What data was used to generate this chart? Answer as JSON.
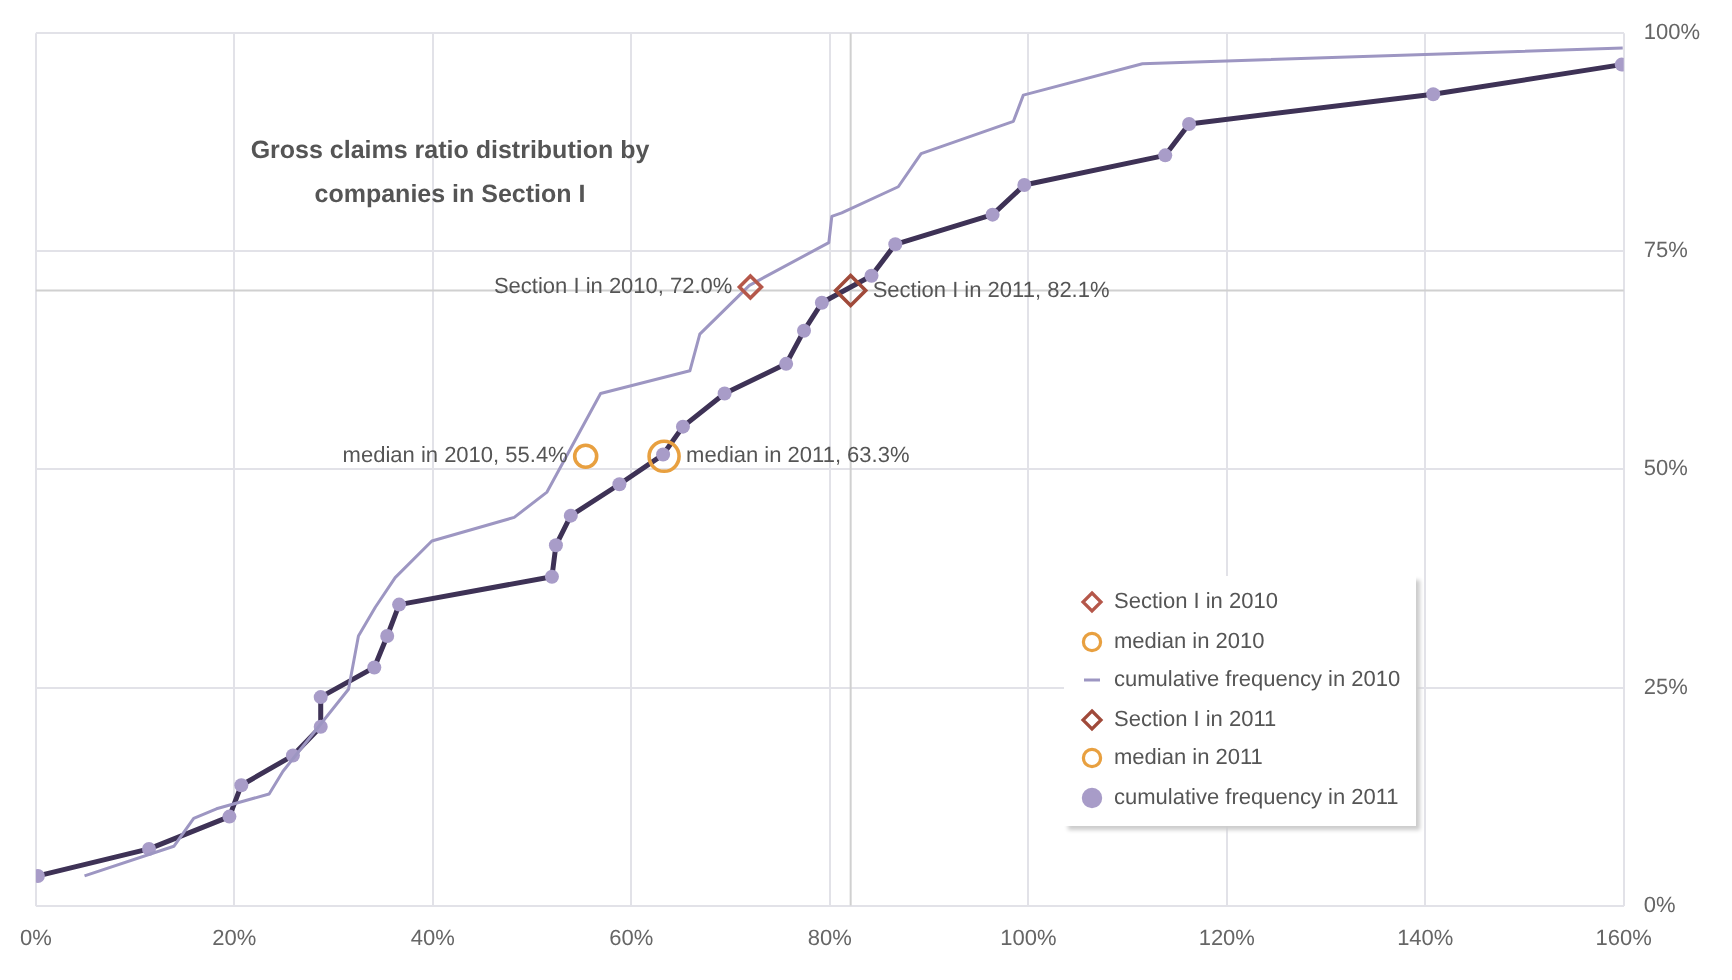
{
  "chart_data": {
    "type": "scatter",
    "title": "Gross claims ratio distribution by companies in Section I",
    "xlim": [
      0,
      160
    ],
    "xticks": [
      {
        "value": 0,
        "label": "0%"
      },
      {
        "value": 20,
        "label": "20%"
      },
      {
        "value": 40,
        "label": "40%"
      },
      {
        "value": 60,
        "label": "60%"
      },
      {
        "value": 80,
        "label": "80%"
      },
      {
        "value": 100,
        "label": "100%"
      },
      {
        "value": 120,
        "label": "120%"
      },
      {
        "value": 140,
        "label": "140%"
      },
      {
        "value": 160,
        "label": "160%"
      }
    ],
    "ylim": [
      0,
      100
    ],
    "yticks": [
      {
        "value": 0,
        "label": "0%"
      },
      {
        "value": 25,
        "label": "25%"
      },
      {
        "value": 50,
        "label": "50%"
      },
      {
        "value": 75,
        "label": "75%"
      },
      {
        "value": 100,
        "label": "100%"
      }
    ],
    "grid": true,
    "legend": "bottom right",
    "series": [
      {
        "name": "Section I in 2010",
        "marker": "diamond",
        "color": "#b5574a",
        "x": [
          72.0
        ],
        "values": [
          70.9
        ]
      },
      {
        "name": "median in 2010",
        "marker": "circle",
        "color": "#e8a040",
        "x": [
          55.4
        ],
        "values": [
          51.5
        ]
      },
      {
        "name": "cumulative frequency in 2010",
        "type": "line",
        "marker": "none",
        "line_style": "solid",
        "color": "#9d96c2",
        "x": [
          4.9,
          13.9,
          15.9,
          18.2,
          23.5,
          24.9,
          31.5,
          32.5,
          34.2,
          36.2,
          39.9,
          48.2,
          51.5,
          56.9,
          65.9,
          66.9,
          71.9,
          79.9,
          80.2,
          81.2,
          86.9,
          89.2,
          98.5,
          99.5,
          111.5,
          159.9
        ],
        "values": [
          3.4,
          6.8,
          10.0,
          11.1,
          12.8,
          15.4,
          24.8,
          30.9,
          34.2,
          37.6,
          41.8,
          44.5,
          47.4,
          58.7,
          61.3,
          65.5,
          71.1,
          76.0,
          79.0,
          79.4,
          82.4,
          86.2,
          89.9,
          92.9,
          96.5,
          98.3
        ]
      },
      {
        "name": "Section I in 2011",
        "marker": "diamond",
        "color": "#a04a3a",
        "x": [
          82.1
        ],
        "values": [
          70.5
        ]
      },
      {
        "name": "median in 2011",
        "marker": "circle",
        "color": "#e8a040",
        "x": [
          63.3
        ],
        "values": [
          51.5
        ]
      },
      {
        "name": "cumulative frequency in 2011",
        "type": "line",
        "marker": "circle",
        "line_style": "solid",
        "color": "#a89cc8",
        "x": [
          0.2,
          11.4,
          19.5,
          20.7,
          25.9,
          28.7,
          28.7,
          34.1,
          35.4,
          36.6,
          52.0,
          52.4,
          53.9,
          58.8,
          63.2,
          65.2,
          69.4,
          75.6,
          77.4,
          79.2,
          84.2,
          86.6,
          96.4,
          99.6,
          113.8,
          116.2,
          140.8,
          159.8
        ],
        "values": [
          3.4,
          6.5,
          10.2,
          13.8,
          17.2,
          20.5,
          23.9,
          27.3,
          30.9,
          34.5,
          37.7,
          41.3,
          44.7,
          48.3,
          51.7,
          54.9,
          58.7,
          62.1,
          65.9,
          69.1,
          72.2,
          75.8,
          79.2,
          82.6,
          86.0,
          89.6,
          93.0,
          96.4
        ]
      }
    ],
    "ref_lines": [
      {
        "axis": "x",
        "value": 82.1,
        "color": "#d0d0d0"
      },
      {
        "axis": "y",
        "value": 70.5,
        "color": "#d0d0d0"
      }
    ],
    "annotations": [
      {
        "text": "Section I in 2010, 72.0%",
        "x": 72.0,
        "y": 70.9
      },
      {
        "text": "Section I in 2011, 82.1%",
        "x": 82.1,
        "y": 70.5
      },
      {
        "text": "median in 2010, 55.4%",
        "x": 55.4,
        "y": 51.5
      },
      {
        "text": "median in 2011, 63.3%",
        "x": 63.3,
        "y": 51.5
      }
    ]
  }
}
